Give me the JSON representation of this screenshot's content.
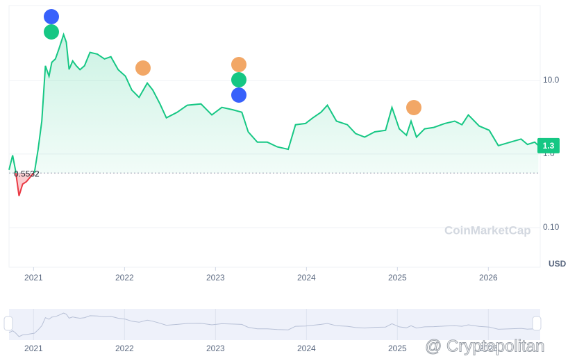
{
  "chart_data": {
    "type": "line",
    "x": [
      2020.73,
      2020.77,
      2020.8,
      2020.84,
      2020.88,
      2020.92,
      2021.01,
      2021.05,
      2021.09,
      2021.13,
      2021.17,
      2021.2,
      2021.24,
      2021.28,
      2021.33,
      2021.36,
      2021.39,
      2021.43,
      2021.47,
      2021.51,
      2021.56,
      2021.62,
      2021.7,
      2021.78,
      2021.85,
      2021.93,
      2022.01,
      2022.08,
      2022.16,
      2022.25,
      2022.31,
      2022.39,
      2022.46,
      2022.58,
      2022.69,
      2022.84,
      2022.96,
      2023.07,
      2023.19,
      2023.29,
      2023.36,
      2023.46,
      2023.57,
      2023.68,
      2023.8,
      2023.88,
      2023.99,
      2024.07,
      2024.16,
      2024.23,
      2024.33,
      2024.45,
      2024.54,
      2024.64,
      2024.75,
      2024.87,
      2024.94,
      2025.02,
      2025.1,
      2025.15,
      2025.21,
      2025.3,
      2025.4,
      2025.52,
      2025.63,
      2025.71,
      2025.78,
      2025.9,
      2026.01,
      2026.11,
      2026.24,
      2026.36,
      2026.43,
      2026.51,
      2026.55
    ],
    "series": [
      {
        "color": "#16c784",
        "values": [
          0.61,
          0.96,
          0.61,
          0.27,
          0.39,
          0.42,
          0.57,
          1.16,
          2.8,
          15.8,
          11.4,
          17.6,
          19.6,
          27,
          42,
          33,
          14.1,
          18.4,
          15.8,
          14,
          15.8,
          24,
          22.8,
          19.6,
          21,
          14,
          11.4,
          7.4,
          5.9,
          9.2,
          7.4,
          4.8,
          3.1,
          3.7,
          4.6,
          4.8,
          3.4,
          4.3,
          4.0,
          3.7,
          2.0,
          1.45,
          1.45,
          1.25,
          1.16,
          2.5,
          2.6,
          3.1,
          3.7,
          4.6,
          2.8,
          2.5,
          1.9,
          1.7,
          2.0,
          2.1,
          4.3,
          2.2,
          1.8,
          2.8,
          1.7,
          2.2,
          2.3,
          2.6,
          2.8,
          2.5,
          3.4,
          2.4,
          2.1,
          1.3,
          1.45,
          1.6,
          1.35,
          1.45,
          1.3
        ]
      }
    ],
    "below_color": "#ea3943",
    "log_y": true,
    "xlim": [
      2020.73,
      2026.57
    ],
    "xticks": [
      2021,
      2022,
      2023,
      2024,
      2025,
      2026
    ],
    "ylim": [
      0.029,
      104
    ],
    "yticks": [
      {
        "value": 0.1,
        "label": "0.10"
      },
      {
        "value": 1,
        "label": "1.0"
      },
      {
        "value": 10,
        "label": "10.0"
      }
    ],
    "y_unit": "USD",
    "reference_price": 0.5532,
    "last_price": 1.3,
    "watermark": "CoinMarketCap",
    "credit": "@ Cryptopolitan"
  }
}
